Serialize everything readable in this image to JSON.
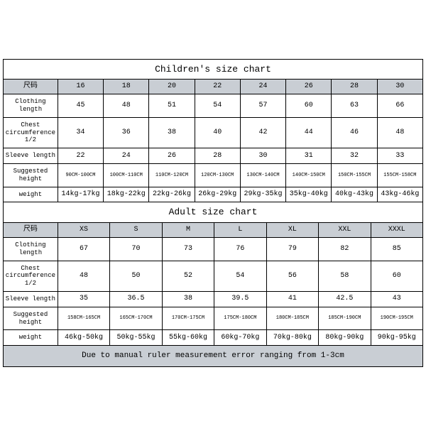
{
  "children_table": {
    "title": "Children's size chart",
    "header_label": "尺码",
    "sizes": [
      "16",
      "18",
      "20",
      "22",
      "24",
      "26",
      "28",
      "30"
    ],
    "rows": [
      {
        "label": "Clothing length",
        "values": [
          "45",
          "48",
          "51",
          "54",
          "57",
          "60",
          "63",
          "66"
        ]
      },
      {
        "label": "Chest circumference 1/2",
        "values": [
          "34",
          "36",
          "38",
          "40",
          "42",
          "44",
          "46",
          "48"
        ]
      },
      {
        "label": "Sleeve length",
        "values": [
          "22",
          "24",
          "26",
          "28",
          "30",
          "31",
          "32",
          "33"
        ]
      },
      {
        "label": "Suggested height",
        "values": [
          "90CM-100CM",
          "100CM-110CM",
          "110CM-120CM",
          "120CM-130CM",
          "130CM-140CM",
          "140CM-150CM",
          "150CM-155CM",
          "155CM-158CM"
        ],
        "small": true
      },
      {
        "label": "weight",
        "values": [
          "14kg-17kg",
          "18kg-22kg",
          "22kg-26kg",
          "26kg-29kg",
          "29kg-35kg",
          "35kg-40kg",
          "40kg-43kg",
          "43kg-46kg"
        ]
      }
    ]
  },
  "adult_table": {
    "title": "Adult size chart",
    "header_label": "尺码",
    "sizes": [
      "XS",
      "S",
      "M",
      "L",
      "XL",
      "XXL",
      "XXXL"
    ],
    "rows": [
      {
        "label": "Clothing length",
        "values": [
          "67",
          "70",
          "73",
          "76",
          "79",
          "82",
          "85"
        ]
      },
      {
        "label": "Chest circumference 1/2",
        "values": [
          "48",
          "50",
          "52",
          "54",
          "56",
          "58",
          "60"
        ]
      },
      {
        "label": "Sleeve length",
        "values": [
          "35",
          "36.5",
          "38",
          "39.5",
          "41",
          "42.5",
          "43"
        ]
      },
      {
        "label": "Suggested height",
        "values": [
          "158CM-165CM",
          "165CM-170CM",
          "170CM-175CM",
          "175CM-180CM",
          "180CM-185CM",
          "185CM-190CM",
          "190CM-195CM"
        ],
        "small": true
      },
      {
        "label": "weight",
        "values": [
          "46kg-50kg",
          "50kg-55kg",
          "55kg-60kg",
          "60kg-70kg",
          "70kg-80kg",
          "80kg-90kg",
          "90kg-95kg"
        ]
      }
    ],
    "footer": "Due to manual ruler measurement error ranging from 1-3cm"
  },
  "colors": {
    "header_bg": "#c9ced4",
    "border": "#000000",
    "bg": "#ffffff"
  }
}
